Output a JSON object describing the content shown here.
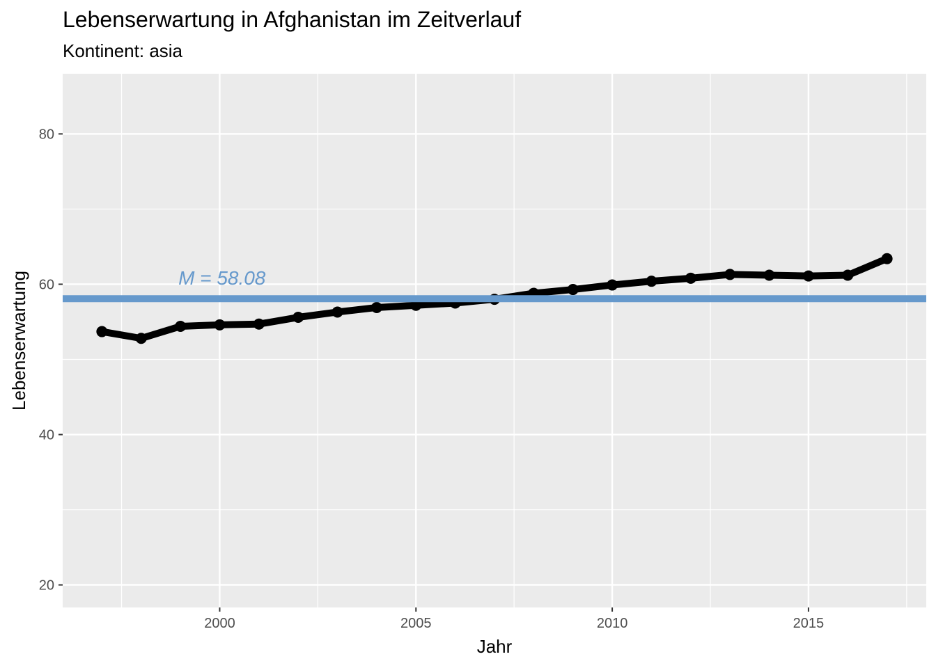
{
  "chart_data": {
    "type": "line",
    "title": "Lebenserwartung in Afghanistan im Zeitverlauf",
    "subtitle": "Kontinent: asia",
    "xlabel": "Jahr",
    "ylabel": "Lebenserwartung",
    "xlim": [
      1996,
      2018
    ],
    "ylim": [
      17,
      88
    ],
    "x_ticks": [
      2000,
      2005,
      2010,
      2015
    ],
    "y_ticks": [
      20,
      40,
      60,
      80
    ],
    "grid": true,
    "series": [
      {
        "x": [
          1997,
          1998,
          1999,
          2000,
          2001,
          2002,
          2003,
          2004,
          2005,
          2006,
          2007,
          2008,
          2009,
          2010,
          2011,
          2012,
          2013,
          2014,
          2015,
          2016,
          2017
        ],
        "values": [
          53.7,
          52.8,
          54.4,
          54.6,
          54.7,
          55.6,
          56.3,
          56.9,
          57.2,
          57.5,
          58.0,
          58.8,
          59.3,
          59.9,
          60.4,
          60.8,
          61.3,
          61.2,
          61.1,
          61.2,
          63.4
        ]
      }
    ],
    "reference_line": {
      "y": 58.08,
      "label": "M = 58.08",
      "color": "#6699cc"
    },
    "colors": {
      "panel": "#ebebeb",
      "grid": "#ffffff",
      "line": "#000000"
    }
  }
}
